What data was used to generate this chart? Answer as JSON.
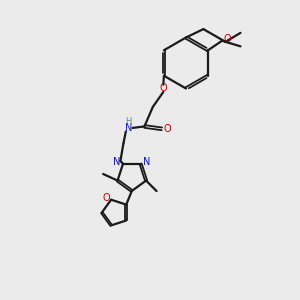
{
  "background_color": "#ebebeb",
  "bond_color": "#1a1a1a",
  "nitrogen_color": "#1010cc",
  "oxygen_color": "#cc0000",
  "h_color": "#5588aa",
  "figsize": [
    3.0,
    3.0
  ],
  "dpi": 100,
  "xlim": [
    0,
    10
  ],
  "ylim": [
    0,
    10
  ]
}
